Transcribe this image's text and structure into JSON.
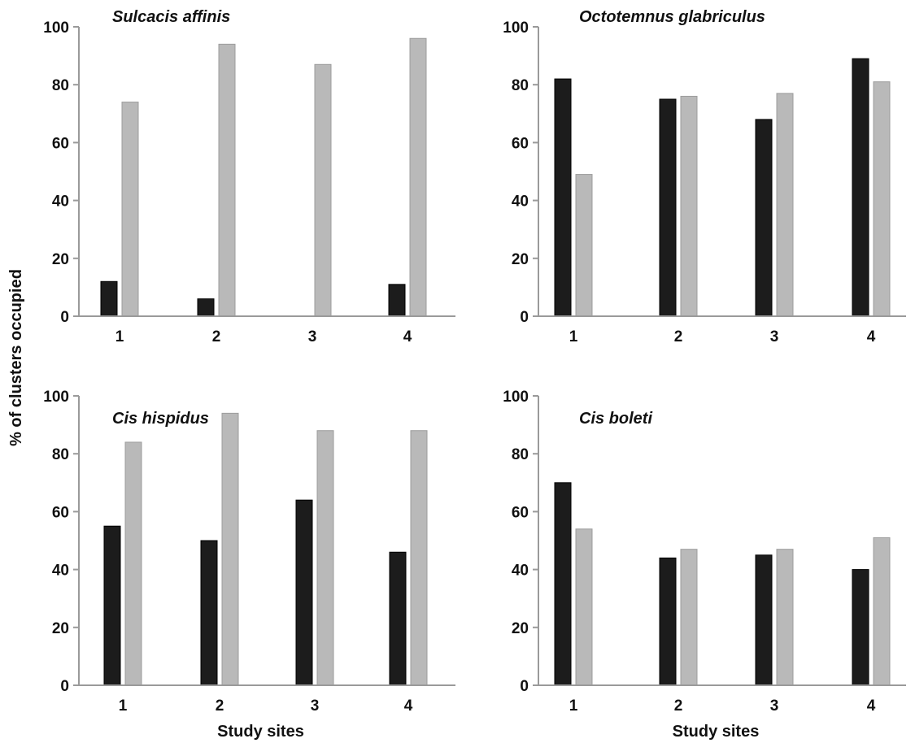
{
  "ylabel": "% of clusters occupied",
  "xlabel": "Study sites",
  "colors": {
    "dark": "#1c1c1c",
    "light": "#b9b9b9",
    "axis": "#9a9a9a"
  },
  "chart_data": [
    {
      "type": "bar",
      "title": "Sulcacis affinis",
      "categories": [
        "1",
        "2",
        "3",
        "4"
      ],
      "series": [
        {
          "values": [
            12,
            6,
            0,
            11
          ]
        },
        {
          "values": [
            74,
            94,
            87,
            96
          ]
        }
      ],
      "ylim": [
        0,
        100
      ],
      "yticks": [
        "0",
        "20",
        "40",
        "60",
        "80",
        "100"
      ],
      "xlabel": "",
      "ylabel": ""
    },
    {
      "type": "bar",
      "title": "Octotemnus glabriculus",
      "categories": [
        "1",
        "2",
        "3",
        "4"
      ],
      "series": [
        {
          "values": [
            82,
            75,
            68,
            89
          ]
        },
        {
          "values": [
            49,
            76,
            77,
            81
          ]
        }
      ],
      "ylim": [
        0,
        100
      ],
      "yticks": [
        "0",
        "20",
        "40",
        "60",
        "80",
        "100"
      ],
      "xlabel": "",
      "ylabel": ""
    },
    {
      "type": "bar",
      "title": "Cis hispidus",
      "categories": [
        "1",
        "2",
        "3",
        "4"
      ],
      "series": [
        {
          "values": [
            55,
            50,
            64,
            46
          ]
        },
        {
          "values": [
            84,
            94,
            88,
            88
          ]
        }
      ],
      "ylim": [
        0,
        100
      ],
      "yticks": [
        "0",
        "20",
        "40",
        "60",
        "80",
        "100"
      ],
      "xlabel": "Study sites",
      "ylabel": ""
    },
    {
      "type": "bar",
      "title": "Cis boleti",
      "categories": [
        "1",
        "2",
        "3",
        "4"
      ],
      "series": [
        {
          "values": [
            70,
            44,
            45,
            40
          ]
        },
        {
          "values": [
            54,
            47,
            47,
            51
          ]
        }
      ],
      "ylim": [
        0,
        100
      ],
      "yticks": [
        "0",
        "20",
        "40",
        "60",
        "80",
        "100"
      ],
      "xlabel": "Study sites",
      "ylabel": ""
    }
  ]
}
